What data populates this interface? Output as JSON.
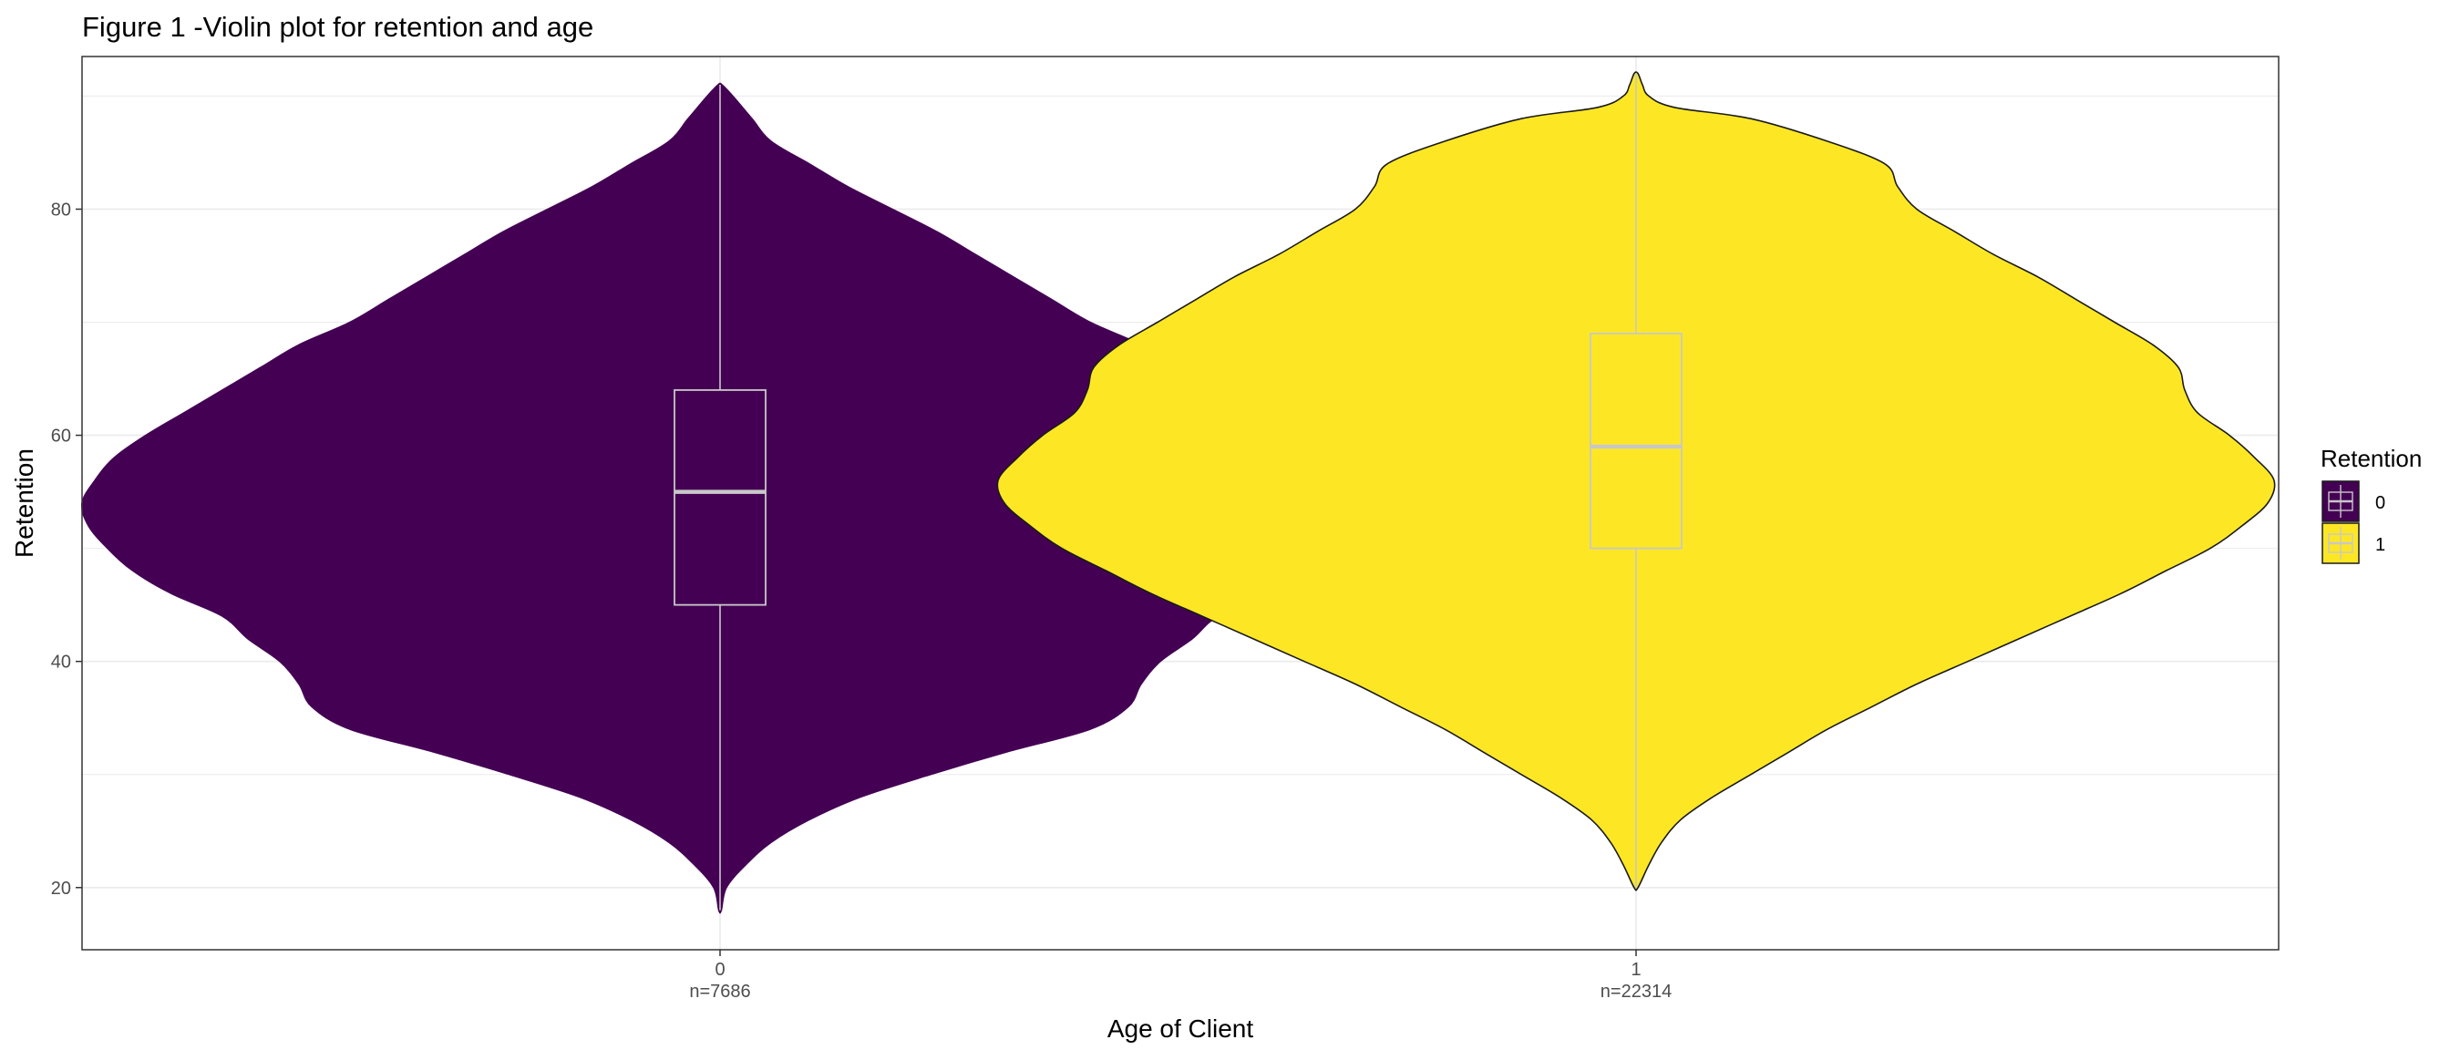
{
  "chart_data": {
    "type": "violin",
    "title": "Figure 1 -Violin plot for retention and age",
    "xlabel": "Age of Client",
    "ylabel": "Retention",
    "ylim": [
      14.5,
      93.5
    ],
    "yticks": [
      20,
      40,
      60,
      80
    ],
    "grid": true,
    "legend": {
      "title": "Retention",
      "position": "right",
      "entries": [
        "0",
        "1"
      ]
    },
    "colors": {
      "0": "#440154",
      "1": "#FDE725",
      "box": "#c8c8c8",
      "outline_1": "#1a1a1a",
      "panel_border": "#333333",
      "grid": "#ebebeb"
    },
    "groups": [
      {
        "category": "0",
        "count_label": "n=7686",
        "fill": "#440154",
        "box": {
          "q1": 45,
          "median": 55,
          "q3": 64,
          "whisker_low": 18,
          "whisker_high": 91
        },
        "density": [
          [
            18,
            0.002
          ],
          [
            20,
            0.01
          ],
          [
            22,
            0.04
          ],
          [
            24,
            0.08
          ],
          [
            26,
            0.14
          ],
          [
            28,
            0.22
          ],
          [
            30,
            0.33
          ],
          [
            32,
            0.45
          ],
          [
            34,
            0.58
          ],
          [
            36,
            0.64
          ],
          [
            38,
            0.66
          ],
          [
            40,
            0.69
          ],
          [
            42,
            0.74
          ],
          [
            44,
            0.78
          ],
          [
            46,
            0.86
          ],
          [
            48,
            0.92
          ],
          [
            50,
            0.96
          ],
          [
            52,
            0.99
          ],
          [
            54,
            1.0
          ],
          [
            56,
            0.98
          ],
          [
            58,
            0.95
          ],
          [
            60,
            0.9
          ],
          [
            62,
            0.84
          ],
          [
            64,
            0.78
          ],
          [
            66,
            0.72
          ],
          [
            68,
            0.66
          ],
          [
            70,
            0.58
          ],
          [
            72,
            0.52
          ],
          [
            74,
            0.46
          ],
          [
            76,
            0.4
          ],
          [
            78,
            0.34
          ],
          [
            80,
            0.27
          ],
          [
            82,
            0.2
          ],
          [
            84,
            0.14
          ],
          [
            86,
            0.08
          ],
          [
            88,
            0.05
          ],
          [
            90,
            0.02
          ],
          [
            91,
            0.003
          ]
        ]
      },
      {
        "category": "1",
        "count_label": "n=22314",
        "fill": "#FDE725",
        "box": {
          "q1": 50,
          "median": 59,
          "q3": 69,
          "whisker_low": 20,
          "whisker_high": 92
        },
        "density": [
          [
            20,
            0.003
          ],
          [
            22,
            0.02
          ],
          [
            24,
            0.04
          ],
          [
            26,
            0.07
          ],
          [
            28,
            0.12
          ],
          [
            30,
            0.18
          ],
          [
            32,
            0.24
          ],
          [
            34,
            0.3
          ],
          [
            36,
            0.37
          ],
          [
            38,
            0.44
          ],
          [
            40,
            0.52
          ],
          [
            42,
            0.6
          ],
          [
            44,
            0.68
          ],
          [
            46,
            0.76
          ],
          [
            48,
            0.83
          ],
          [
            50,
            0.9
          ],
          [
            52,
            0.95
          ],
          [
            54,
            0.99
          ],
          [
            56,
            1.0
          ],
          [
            58,
            0.97
          ],
          [
            60,
            0.93
          ],
          [
            62,
            0.88
          ],
          [
            64,
            0.86
          ],
          [
            66,
            0.85
          ],
          [
            68,
            0.81
          ],
          [
            70,
            0.75
          ],
          [
            72,
            0.69
          ],
          [
            74,
            0.63
          ],
          [
            76,
            0.56
          ],
          [
            78,
            0.5
          ],
          [
            80,
            0.44
          ],
          [
            82,
            0.41
          ],
          [
            84,
            0.39
          ],
          [
            86,
            0.3
          ],
          [
            88,
            0.18
          ],
          [
            89,
            0.06
          ],
          [
            90,
            0.02
          ],
          [
            91,
            0.01
          ],
          [
            92,
            0.003
          ]
        ]
      }
    ]
  }
}
